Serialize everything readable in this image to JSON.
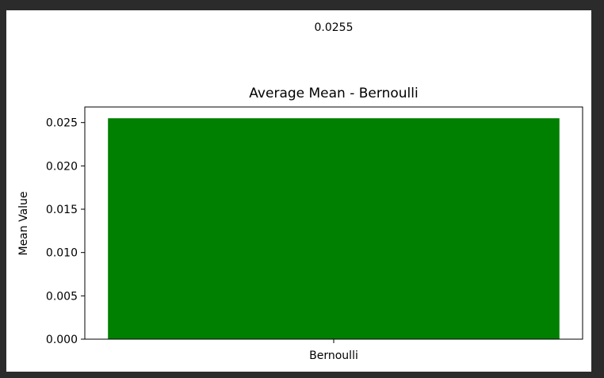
{
  "chart_data": {
    "type": "bar",
    "title": "Average Mean - Bernoulli",
    "annotation": "0.0255",
    "xlabel": "",
    "ylabel": "Mean Value",
    "categories": [
      "Bernoulli"
    ],
    "values": [
      0.0255
    ],
    "ylim": [
      0,
      0.0268
    ],
    "yticks": [
      0.0,
      0.005,
      0.01,
      0.015,
      0.02,
      0.025
    ],
    "ytick_labels": [
      "0.000",
      "0.005",
      "0.010",
      "0.015",
      "0.020",
      "0.025"
    ],
    "bar_color": "#008000",
    "grid": false,
    "legend": "none"
  }
}
